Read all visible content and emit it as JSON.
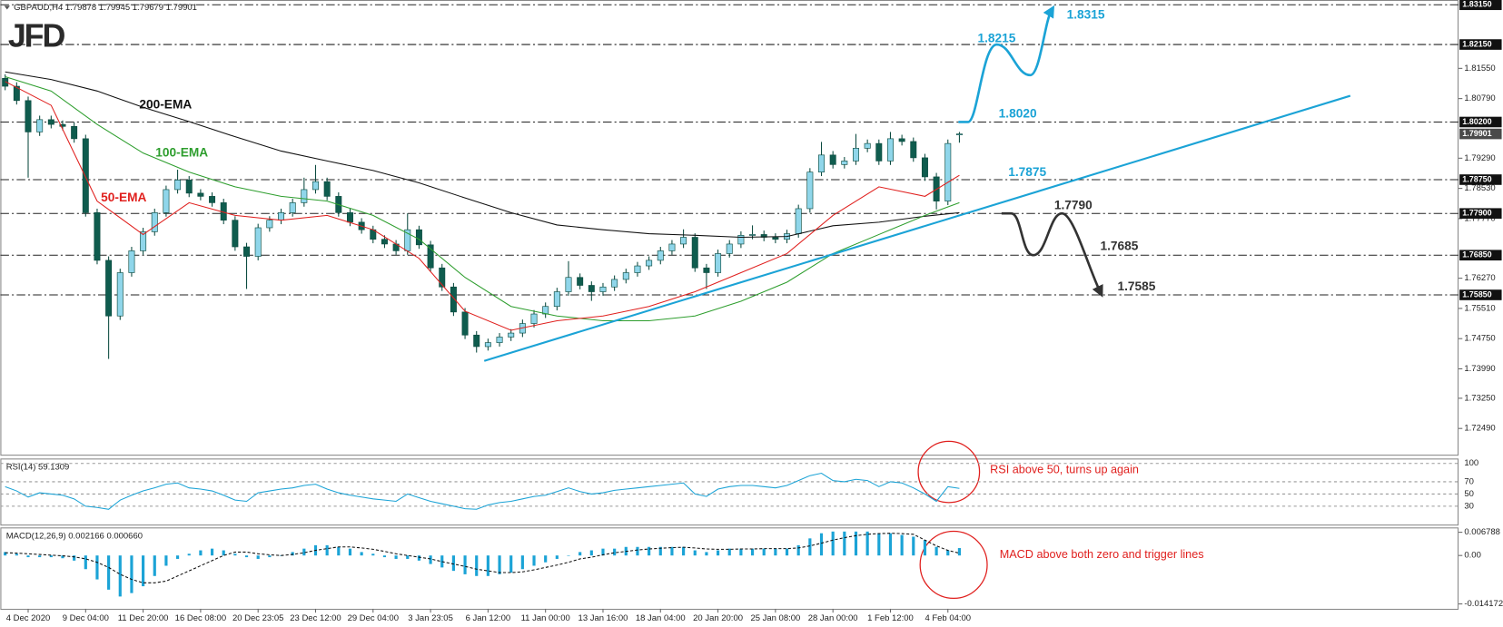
{
  "logo": "JFD",
  "chart_data": [
    {
      "type": "candlestick",
      "title": "GBPAUD,H4 1.79878 1.79945 1.79679 1.79901",
      "categories": [
        null,
        null,
        "4 Dec 2020",
        null,
        null,
        null,
        null,
        "9 Dec 04:00",
        null,
        null,
        null,
        null,
        "11 Dec 20:00",
        null,
        null,
        null,
        null,
        "16 Dec 08:00",
        null,
        null,
        null,
        null,
        "20 Dec 23:05",
        null,
        null,
        null,
        null,
        "23 Dec 12:00",
        null,
        null,
        null,
        null,
        "29 Dec 04:00",
        null,
        null,
        null,
        null,
        "3 Jan 23:05",
        null,
        null,
        null,
        null,
        "6 Jan 12:00",
        null,
        null,
        null,
        null,
        "11 Jan 00:00",
        null,
        null,
        null,
        null,
        "13 Jan 16:00",
        null,
        null,
        null,
        null,
        "18 Jan 04:00",
        null,
        null,
        null,
        null,
        "20 Jan 20:00",
        null,
        null,
        null,
        null,
        "25 Jan 08:00",
        null,
        null,
        null,
        null,
        "28 Jan 00:00",
        null,
        null,
        null,
        null,
        "1 Feb 12:00",
        null,
        null,
        null,
        null,
        "4 Feb 04:00",
        null
      ],
      "open": [
        1.813,
        1.811,
        1.8074,
        1.7995,
        1.8026,
        1.8014,
        1.8009,
        1.7978,
        1.7792,
        1.7672,
        1.7532,
        1.7641,
        1.7696,
        1.7744,
        1.7792,
        1.785,
        1.7874,
        1.7841,
        1.7833,
        1.7817,
        1.7773,
        1.7706,
        1.7682,
        1.7754,
        1.7773,
        1.7792,
        1.7817,
        1.785,
        1.787,
        1.7833,
        1.7792,
        1.7768,
        1.7749,
        1.7725,
        1.7713,
        1.7696,
        1.7749,
        1.7711,
        1.7653,
        1.7605,
        1.7542,
        1.7484,
        1.7455,
        1.7465,
        1.7479,
        1.7489,
        1.7513,
        1.7537,
        1.7556,
        1.7593,
        1.7629,
        1.7609,
        1.7593,
        1.7605,
        1.7624,
        1.7641,
        1.7658,
        1.7672,
        1.7696,
        1.7713,
        1.773,
        1.7653,
        1.7641,
        1.7689,
        1.7713,
        1.7735,
        1.7737,
        1.773,
        1.7725,
        1.7739,
        1.7802,
        1.7894,
        1.7937,
        1.7913,
        1.7922,
        1.7954,
        1.7966,
        1.7922,
        1.7978,
        1.7971,
        1.793,
        1.7882,
        1.7821,
        1.7988
      ],
      "high": [
        1.814,
        1.812,
        1.8084,
        1.8036,
        1.8036,
        1.8024,
        1.8019,
        1.7988,
        1.7802,
        1.7682,
        1.7651,
        1.7706,
        1.7754,
        1.7802,
        1.786,
        1.79,
        1.7884,
        1.7851,
        1.7843,
        1.7827,
        1.7783,
        1.7716,
        1.7764,
        1.7783,
        1.7802,
        1.7827,
        1.788,
        1.7912,
        1.788,
        1.7843,
        1.7802,
        1.7778,
        1.7759,
        1.7735,
        1.7723,
        1.779,
        1.7759,
        1.7721,
        1.7663,
        1.7615,
        1.7552,
        1.7494,
        1.7475,
        1.7489,
        1.7499,
        1.7523,
        1.7547,
        1.7566,
        1.7603,
        1.767,
        1.7639,
        1.7619,
        1.7615,
        1.7634,
        1.7651,
        1.7668,
        1.7682,
        1.7706,
        1.7723,
        1.775,
        1.774,
        1.7663,
        1.7699,
        1.7723,
        1.7745,
        1.776,
        1.7747,
        1.774,
        1.7749,
        1.7812,
        1.7904,
        1.797,
        1.7947,
        1.7932,
        1.799,
        1.7976,
        1.7976,
        1.7995,
        1.7988,
        1.7981,
        1.794,
        1.7892,
        1.7976,
        1.7995
      ],
      "low": [
        1.81,
        1.8064,
        1.788,
        1.7985,
        1.8004,
        1.7999,
        1.7968,
        1.7782,
        1.7662,
        1.7424,
        1.7522,
        1.7631,
        1.7686,
        1.7734,
        1.7782,
        1.784,
        1.7831,
        1.7823,
        1.7807,
        1.7763,
        1.7696,
        1.76,
        1.7672,
        1.7744,
        1.7763,
        1.7782,
        1.7807,
        1.784,
        1.7823,
        1.7782,
        1.7758,
        1.7739,
        1.7715,
        1.7703,
        1.7686,
        1.7686,
        1.7701,
        1.7643,
        1.7595,
        1.7532,
        1.7474,
        1.744,
        1.7445,
        1.7455,
        1.7469,
        1.7479,
        1.7503,
        1.7527,
        1.7546,
        1.7583,
        1.7599,
        1.757,
        1.7583,
        1.7595,
        1.7614,
        1.7631,
        1.7648,
        1.7662,
        1.7686,
        1.7703,
        1.7643,
        1.76,
        1.7631,
        1.7679,
        1.7703,
        1.7725,
        1.772,
        1.7715,
        1.7715,
        1.7729,
        1.7792,
        1.7884,
        1.7903,
        1.7903,
        1.7912,
        1.7944,
        1.7912,
        1.7912,
        1.7961,
        1.792,
        1.7872,
        1.78,
        1.7811,
        1.7968
      ],
      "close": [
        1.811,
        1.8074,
        1.7995,
        1.8026,
        1.8014,
        1.8009,
        1.7978,
        1.7792,
        1.7672,
        1.7532,
        1.7641,
        1.7696,
        1.7744,
        1.7792,
        1.785,
        1.7874,
        1.7841,
        1.7833,
        1.7817,
        1.7773,
        1.7706,
        1.7682,
        1.7754,
        1.7773,
        1.7792,
        1.7817,
        1.785,
        1.787,
        1.7833,
        1.7792,
        1.7768,
        1.7749,
        1.7725,
        1.7713,
        1.7696,
        1.7749,
        1.7711,
        1.7653,
        1.7605,
        1.7542,
        1.7484,
        1.7455,
        1.7465,
        1.7479,
        1.7489,
        1.7513,
        1.7537,
        1.7556,
        1.7593,
        1.7629,
        1.7609,
        1.7593,
        1.7605,
        1.7624,
        1.7641,
        1.7658,
        1.7672,
        1.7696,
        1.7713,
        1.773,
        1.7653,
        1.7641,
        1.7689,
        1.7713,
        1.7735,
        1.7737,
        1.773,
        1.7725,
        1.7739,
        1.7802,
        1.7894,
        1.7937,
        1.7913,
        1.7922,
        1.7954,
        1.7966,
        1.7922,
        1.7978,
        1.7971,
        1.793,
        1.7882,
        1.7821,
        1.7966,
        1.799
      ],
      "up_color": "#8fd6ea",
      "down_color": "#0f5c4e",
      "ylim": [
        1.7183,
        1.8327
      ],
      "yticks": [
        {
          "value": 1.8155,
          "label": "1.81550"
        },
        {
          "value": 1.8079,
          "label": "1.80790"
        },
        {
          "value": 1.7929,
          "label": "1.79290"
        },
        {
          "value": 1.7853,
          "label": "1.78530"
        },
        {
          "value": 1.7777,
          "label": "1.77770"
        },
        {
          "value": 1.7627,
          "label": "1.76270"
        },
        {
          "value": 1.7551,
          "label": "1.75510"
        },
        {
          "value": 1.7475,
          "label": "1.74750"
        },
        {
          "value": 1.7399,
          "label": "1.73990"
        },
        {
          "value": 1.7325,
          "label": "1.73250"
        },
        {
          "value": 1.7249,
          "label": "1.72490"
        }
      ],
      "levels": [
        {
          "value": 1.8315,
          "label": "1.83150"
        },
        {
          "value": 1.8215,
          "label": "1.82150"
        },
        {
          "value": 1.802,
          "label": "1.80200"
        },
        {
          "value": 1.7875,
          "label": "1.78750"
        },
        {
          "value": 1.779,
          "label": "1.77900"
        },
        {
          "value": 1.7685,
          "label": "1.76850"
        },
        {
          "value": 1.7585,
          "label": "1.75850"
        }
      ],
      "last_price": {
        "value": 1.79901,
        "label": "1.79901"
      },
      "series": [
        {
          "name": "200-EMA",
          "color": "#111111",
          "x": [
            0,
            4,
            8,
            12,
            16,
            20,
            24,
            28,
            32,
            36,
            40,
            44,
            48,
            52,
            56,
            60,
            64,
            68,
            72,
            76,
            80,
            83
          ],
          "values": [
            1.8146,
            1.8127,
            1.8098,
            1.8057,
            1.8021,
            1.7983,
            1.7947,
            1.7922,
            1.7898,
            1.7867,
            1.7829,
            1.7792,
            1.7761,
            1.7749,
            1.7739,
            1.7735,
            1.773,
            1.7732,
            1.7759,
            1.7768,
            1.7783,
            1.7792
          ]
        },
        {
          "name": "100-EMA",
          "color": "#2e9e2e",
          "x": [
            0,
            4,
            8,
            12,
            16,
            20,
            24,
            28,
            32,
            36,
            40,
            44,
            48,
            52,
            56,
            60,
            64,
            68,
            72,
            76,
            80,
            83
          ],
          "values": [
            1.8134,
            1.8098,
            1.8014,
            1.7942,
            1.7894,
            1.7857,
            1.7833,
            1.7821,
            1.7785,
            1.7725,
            1.7629,
            1.7556,
            1.7532,
            1.752,
            1.752,
            1.7532,
            1.7569,
            1.7617,
            1.7689,
            1.7737,
            1.7785,
            1.7817
          ]
        },
        {
          "name": "50-EMA",
          "color": "#e0201e",
          "x": [
            0,
            4,
            8,
            12,
            16,
            20,
            24,
            28,
            32,
            36,
            40,
            44,
            48,
            52,
            56,
            60,
            64,
            68,
            72,
            76,
            80,
            83
          ],
          "values": [
            1.8122,
            1.8062,
            1.7821,
            1.7737,
            1.7817,
            1.7785,
            1.7773,
            1.7785,
            1.7749,
            1.7677,
            1.7544,
            1.7496,
            1.752,
            1.7532,
            1.7556,
            1.7593,
            1.7641,
            1.7689,
            1.7785,
            1.7857,
            1.7833,
            1.7886
          ]
        }
      ],
      "trendline": {
        "color": "#1ba3d6",
        "x": [
          41.67,
          117
        ],
        "values": [
          1.7419,
          1.8086
        ],
        "label": {
          "value": 1.7875,
          "label": "1.7875"
        }
      },
      "scenarios": [
        {
          "color": "#1ba3d6",
          "points": [
            {
              "value": 1.802,
              "label": "1.8020"
            },
            {
              "value": 1.8215,
              "label": "1.8215"
            },
            {
              "value": 1.8315,
              "label": "1.8315"
            }
          ]
        },
        {
          "color": "#333333",
          "points": [
            {
              "value": 1.779,
              "label": "1.7790"
            },
            {
              "value": 1.7685,
              "label": "1.7685"
            },
            {
              "value": 1.7585,
              "label": "1.7585"
            }
          ]
        }
      ]
    },
    {
      "type": "line",
      "title": "RSI(14) 59.1309",
      "color": "#1ba3d6",
      "values": [
        62,
        55,
        45,
        52,
        50,
        48,
        42,
        30,
        28,
        25,
        40,
        48,
        55,
        60,
        66,
        68,
        60,
        58,
        55,
        48,
        40,
        38,
        52,
        55,
        58,
        60,
        64,
        66,
        58,
        52,
        48,
        45,
        42,
        40,
        38,
        50,
        44,
        38,
        34,
        30,
        26,
        25,
        32,
        36,
        38,
        42,
        46,
        48,
        54,
        60,
        54,
        50,
        52,
        56,
        58,
        60,
        62,
        64,
        66,
        68,
        50,
        46,
        58,
        62,
        64,
        64,
        62,
        60,
        64,
        72,
        80,
        84,
        72,
        70,
        74,
        72,
        62,
        70,
        68,
        60,
        50,
        38,
        62,
        59.1309
      ],
      "ylim": [
        0,
        108
      ],
      "yticks": [
        100,
        70,
        50,
        30
      ],
      "annotation": "RSI above 50, turns up again"
    },
    {
      "type": "macd",
      "title": "MACD(12,26,9) 0.002166 0.000660",
      "color": "#1ba3d6",
      "values": [
        0.001,
        0.0005,
        -0.0005,
        -0.0005,
        -0.0005,
        -0.0008,
        -0.0015,
        -0.004,
        -0.007,
        -0.01,
        -0.012,
        -0.011,
        -0.009,
        -0.006,
        -0.003,
        -0.001,
        0.0005,
        0.0015,
        0.002,
        0.0015,
        0.0005,
        -0.0005,
        -0.001,
        -0.0005,
        0,
        0.001,
        0.002,
        0.003,
        0.003,
        0.0025,
        0.002,
        0.001,
        0.0005,
        -0.0005,
        -0.001,
        -0.001,
        -0.0015,
        -0.0025,
        -0.0035,
        -0.0045,
        -0.0055,
        -0.006,
        -0.006,
        -0.0055,
        -0.005,
        -0.004,
        -0.003,
        -0.002,
        -0.001,
        0,
        0.001,
        0.0015,
        0.002,
        0.002,
        0.0025,
        0.0025,
        0.0025,
        0.0025,
        0.0025,
        0.0025,
        0.0015,
        0.001,
        0.0015,
        0.002,
        0.002,
        0.002,
        0.002,
        0.002,
        0.002,
        0.003,
        0.005,
        0.0065,
        0.007,
        0.007,
        0.007,
        0.007,
        0.0065,
        0.0065,
        0.006,
        0.0055,
        0.0045,
        0.0025,
        0.0015,
        0.002166
      ],
      "signal": [
        0.0008,
        0.0007,
        0.0005,
        0.0003,
        0.0001,
        -0.0001,
        -0.0004,
        -0.001,
        -0.002,
        -0.0035,
        -0.0055,
        -0.007,
        -0.008,
        -0.008,
        -0.0075,
        -0.006,
        -0.0045,
        -0.003,
        -0.0015,
        0,
        0.001,
        0.001,
        0.0005,
        0.0002,
        0,
        0.0003,
        0.0008,
        0.0015,
        0.002,
        0.0025,
        0.0025,
        0.0022,
        0.0018,
        0.0012,
        0.0005,
        0,
        -0.0005,
        -0.001,
        -0.0018,
        -0.0025,
        -0.0032,
        -0.004,
        -0.0045,
        -0.005,
        -0.005,
        -0.0048,
        -0.0042,
        -0.0035,
        -0.0028,
        -0.002,
        -0.001,
        -0.0005,
        0.0002,
        0.0008,
        0.0012,
        0.0016,
        0.0019,
        0.0021,
        0.0023,
        0.0024,
        0.0022,
        0.0019,
        0.0018,
        0.0018,
        0.0019,
        0.0019,
        0.002,
        0.002,
        0.002,
        0.0022,
        0.0028,
        0.0036,
        0.0045,
        0.0052,
        0.0058,
        0.0062,
        0.0064,
        0.0065,
        0.0064,
        0.0062,
        0.0045,
        0.0028,
        0.0015,
        0.00066
      ],
      "ylim": [
        -0.0156,
        0.0082
      ],
      "yticks": [
        0.006788,
        {
          "value": 0,
          "label": "0.00"
        },
        -0.014172
      ],
      "annotation": "MACD above both zero and trigger lines"
    }
  ]
}
